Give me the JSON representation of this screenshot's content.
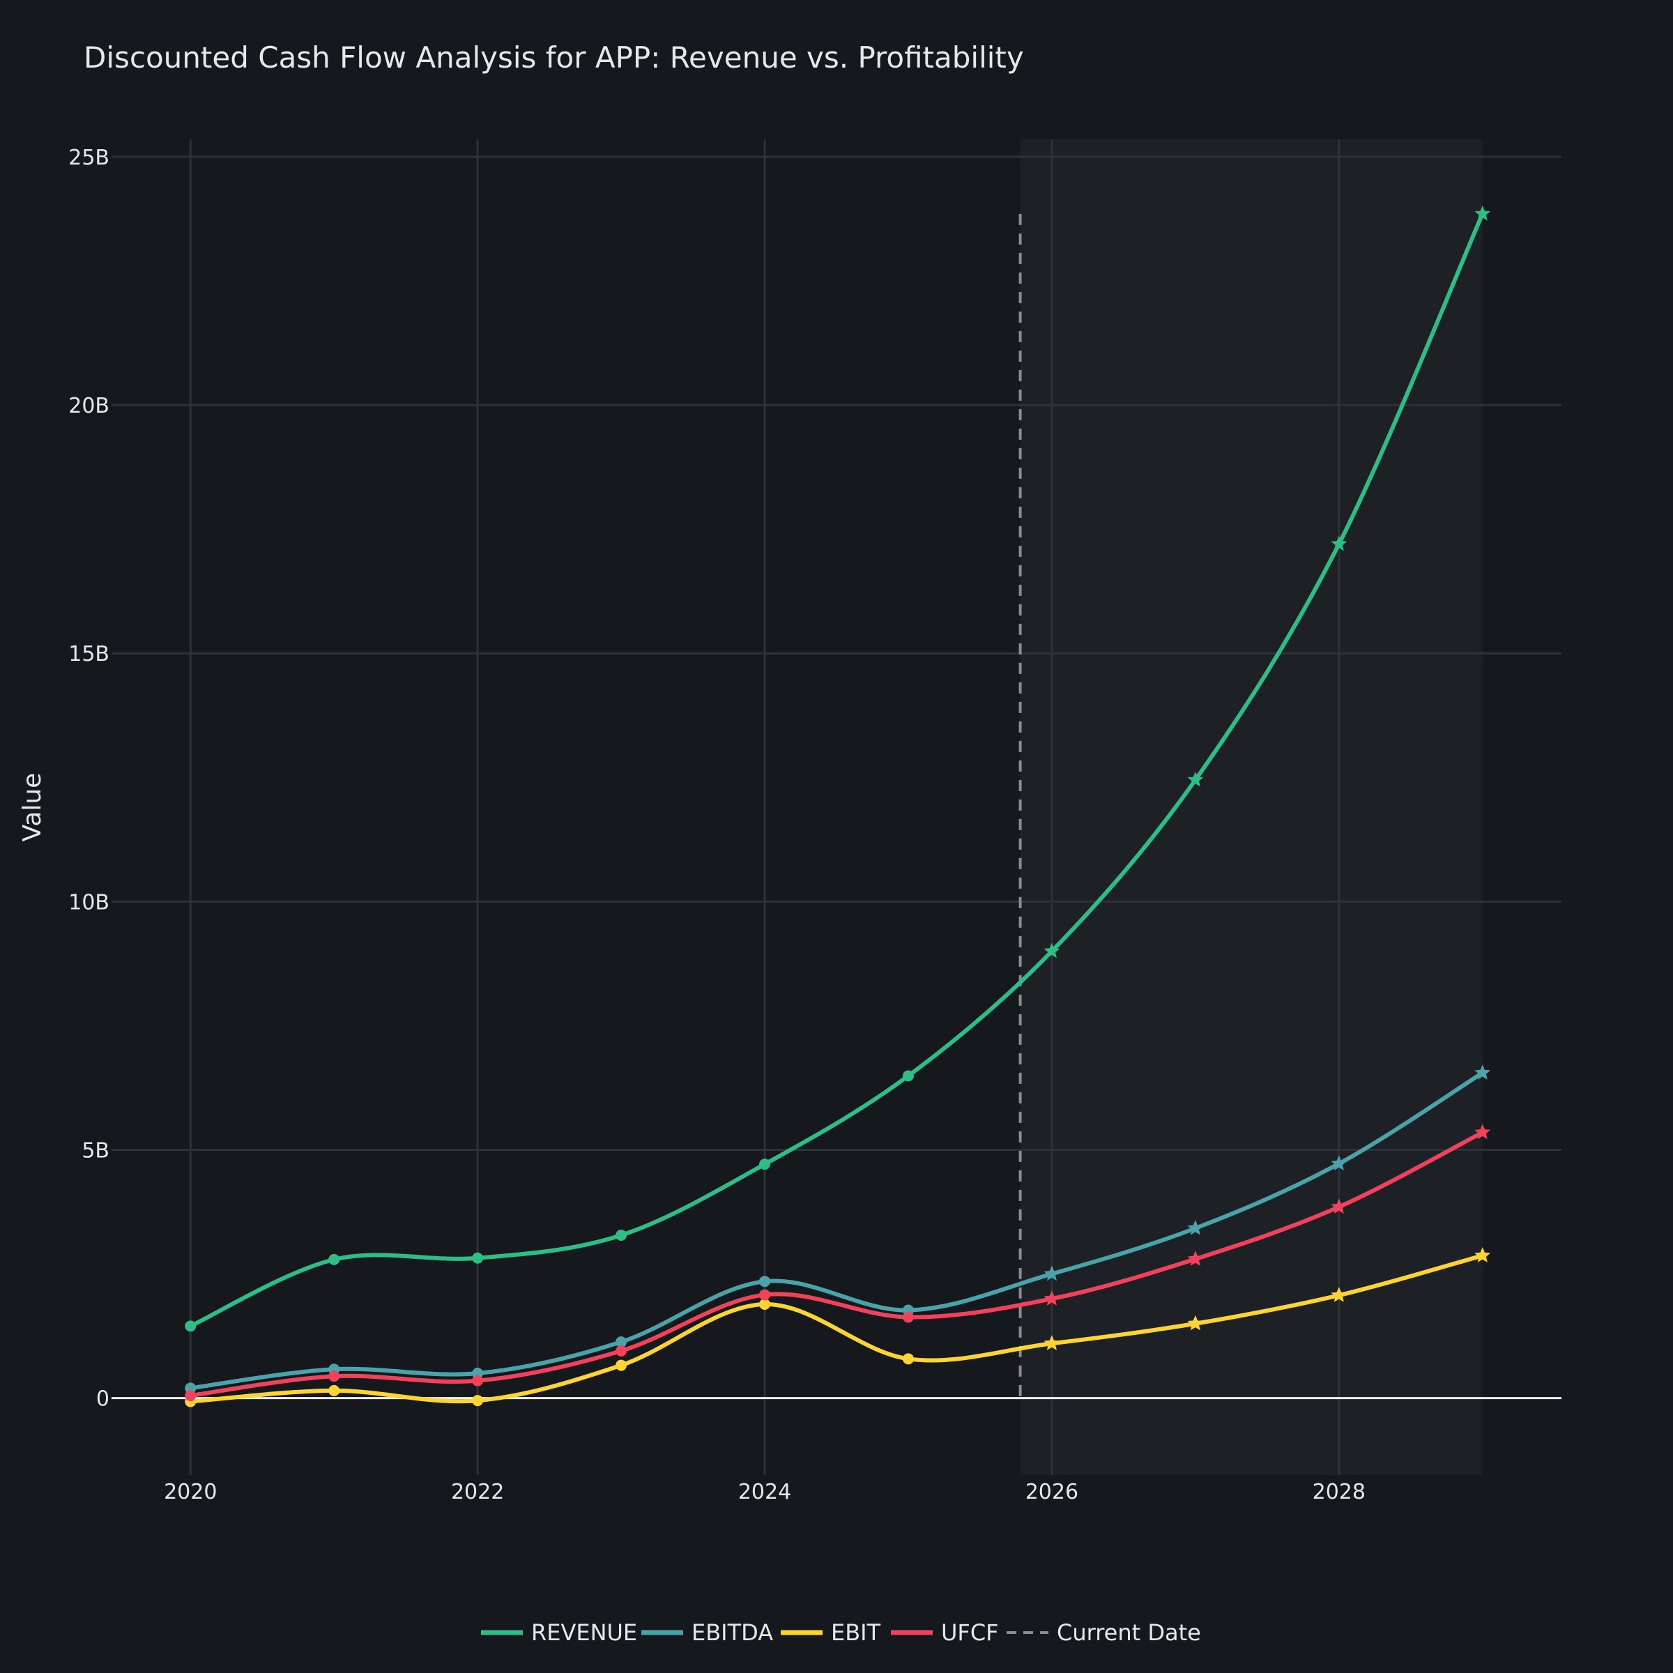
{
  "chart_data": {
    "type": "line",
    "title": "Discounted Cash Flow Analysis for APP: Revenue vs. Profitability",
    "xlabel": "",
    "ylabel": "Value",
    "x": [
      2020,
      2021,
      2022,
      2023,
      2024,
      2025,
      2026,
      2027,
      2028,
      2029
    ],
    "xlim": [
      2019.45,
      2029.55
    ],
    "ylim": [
      -1.55,
      25.35
    ],
    "x_ticks": [
      2020,
      2022,
      2024,
      2026,
      2028
    ],
    "x_tick_labels": [
      "2020",
      "2022",
      "2024",
      "2026",
      "2028"
    ],
    "y_ticks": [
      0,
      5,
      10,
      15,
      20,
      25
    ],
    "y_tick_labels": [
      "0",
      "5B",
      "10B",
      "15B",
      "20B",
      "25B"
    ],
    "y_unit": "B",
    "grid": true,
    "legend_position": "bottom-center",
    "historical_marker": "circle",
    "forecast_marker": "star",
    "forecast_start": 2026,
    "forecast_region": [
      2025.78,
      2029
    ],
    "current_date": 2025.78,
    "series": [
      {
        "name": "REVENUE",
        "color": "#2dbd85",
        "values": [
          1.45,
          2.79,
          2.82,
          3.28,
          4.71,
          6.49,
          9.0,
          12.45,
          17.2,
          23.85
        ]
      },
      {
        "name": "EBITDA",
        "color": "#4aa3a9",
        "values": [
          0.2,
          0.58,
          0.5,
          1.13,
          2.35,
          1.77,
          2.5,
          3.42,
          4.72,
          6.55
        ]
      },
      {
        "name": "EBIT",
        "color": "#fcd535",
        "values": [
          -0.07,
          0.15,
          -0.05,
          0.66,
          1.89,
          0.79,
          1.1,
          1.5,
          2.07,
          2.87
        ]
      },
      {
        "name": "UFCF",
        "color": "#f0425a",
        "values": [
          0.05,
          0.44,
          0.35,
          0.95,
          2.08,
          1.63,
          2.0,
          2.8,
          3.85,
          5.35
        ]
      }
    ],
    "reference_line": {
      "name": "Current Date",
      "color": "#8a8d92",
      "style": "dashed"
    }
  }
}
